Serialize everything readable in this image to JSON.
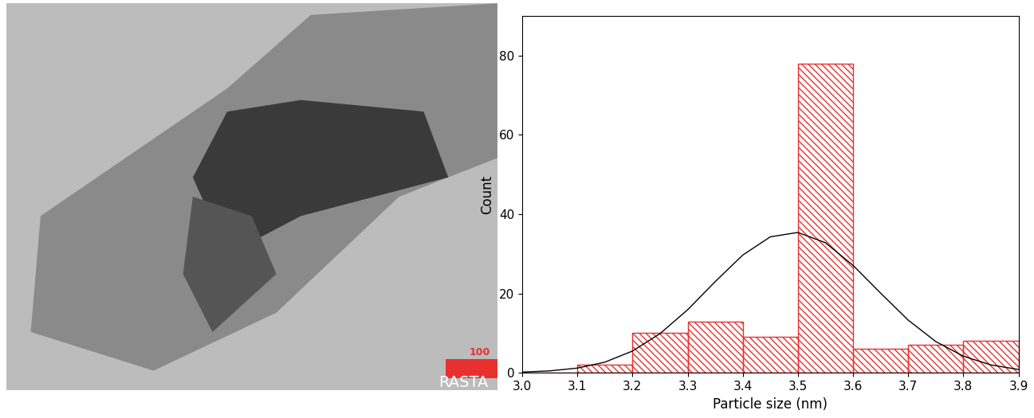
{
  "chart_data": {
    "type": "histogram",
    "bins": [
      3.0,
      3.1,
      3.2,
      3.3,
      3.4,
      3.5,
      3.6,
      3.7,
      3.8,
      3.9
    ],
    "counts": [
      0,
      2,
      10,
      13,
      9,
      78,
      6,
      7,
      8
    ],
    "color": "#e8312f",
    "xlabel": "Particle size (nm)",
    "ylabel": "Count",
    "xlim": [
      3.0,
      3.9
    ],
    "xticks": [
      3.0,
      3.1,
      3.2,
      3.3,
      3.4,
      3.5,
      3.6,
      3.7,
      3.8,
      3.9
    ],
    "ylim": [
      0,
      90
    ],
    "yticks": [
      0,
      20,
      40,
      60,
      80
    ],
    "fit": {
      "type": "line",
      "color": "#000000",
      "x": [
        3.0,
        3.05,
        3.1,
        3.15,
        3.2,
        3.25,
        3.3,
        3.35,
        3.4,
        3.45,
        3.5,
        3.55,
        3.6,
        3.65,
        3.7,
        3.75,
        3.8,
        3.85,
        3.9
      ],
      "values": [
        0.2,
        0.5,
        1.2,
        2.7,
        5.5,
        9.9,
        15.9,
        23.0,
        29.7,
        34.3,
        35.4,
        32.8,
        27.1,
        20.1,
        13.3,
        7.9,
        4.2,
        2.0,
        0.85
      ]
    }
  },
  "micrograph": {
    "scale_bar_label": "100",
    "watermark": "RASTA"
  }
}
